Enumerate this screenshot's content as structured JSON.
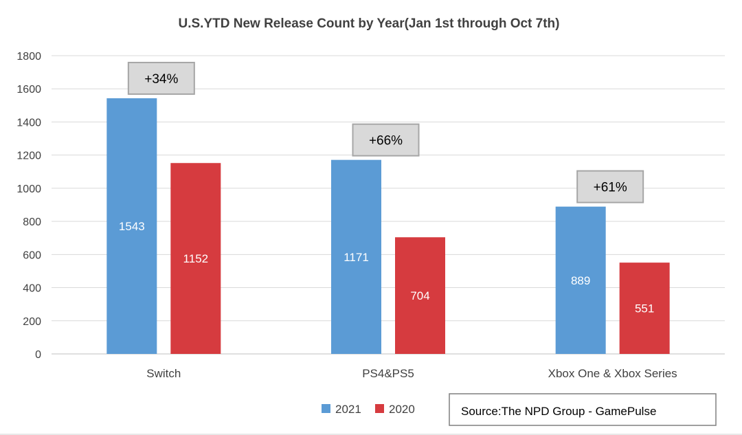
{
  "chart_data": {
    "type": "bar",
    "title": "U.S.YTD New Release Count by Year(Jan 1st through Oct 7th)",
    "categories": [
      "Switch",
      "PS4&PS5",
      "Xbox One & Xbox Series"
    ],
    "series": [
      {
        "name": "2021",
        "values": [
          1543,
          1171,
          889
        ],
        "color": "#5b9bd5"
      },
      {
        "name": "2020",
        "values": [
          1152,
          704,
          551
        ],
        "color": "#d63b3f"
      }
    ],
    "annotations": [
      "+34%",
      "+66%",
      "+61%"
    ],
    "ylim": [
      0,
      1800
    ],
    "yticks": [
      0,
      200,
      400,
      600,
      800,
      1000,
      1200,
      1400,
      1600,
      1800
    ],
    "grid": true,
    "legend_position": "bottom",
    "source": "Source:The NPD Group - GamePulse"
  }
}
